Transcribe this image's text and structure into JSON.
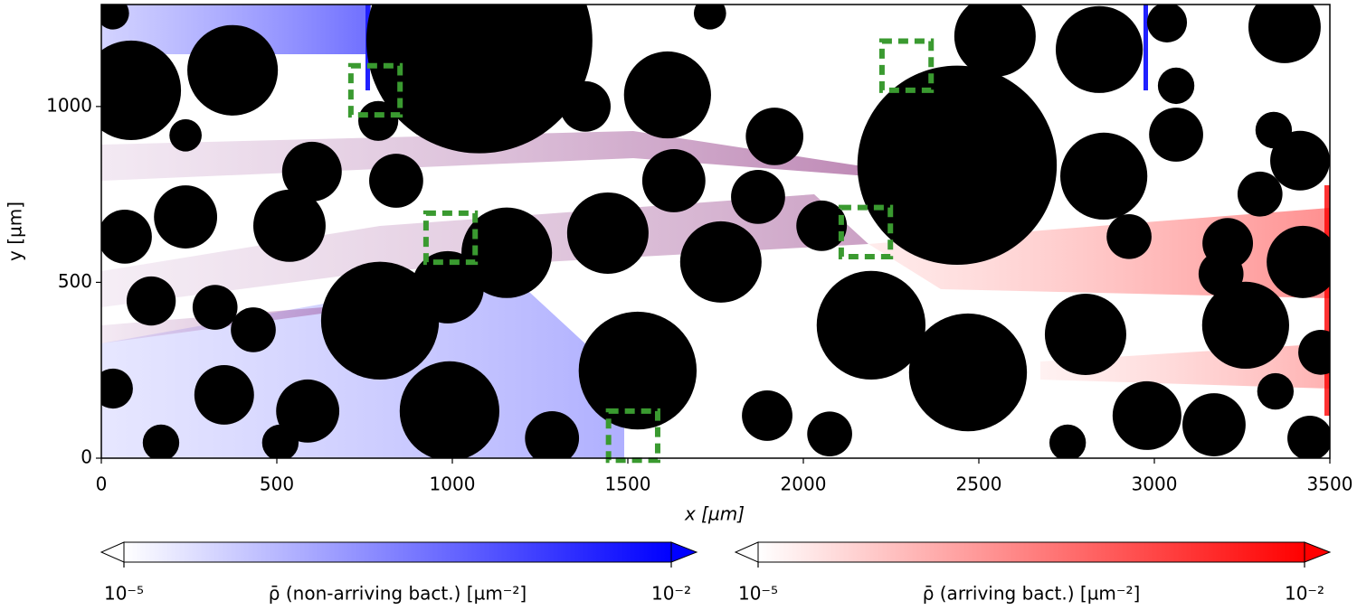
{
  "chart_data": {
    "type": "obstacle-map",
    "xlabel": "x [µm]",
    "ylabel": "y [µm]",
    "xlim": [
      0,
      3500
    ],
    "ylim": [
      0,
      1290
    ],
    "xticks": [
      0,
      500,
      1000,
      1500,
      2000,
      2500,
      3000,
      3500
    ],
    "yticks": [
      0,
      500,
      1000
    ],
    "obstacle_color": "#000000",
    "obstacles": {
      "x": [
        1077,
        2438,
        2469,
        2193,
        1528,
        794,
        1613,
        374,
        85,
        2843,
        2856,
        3260,
        2804,
        1443,
        1155,
        987,
        992,
        3423,
        536,
        600,
        840,
        240,
        67,
        142,
        324,
        433,
        350,
        588,
        1284,
        1631,
        1765,
        1918,
        1871,
        2052,
        1897,
        2075,
        3170,
        3371,
        3415,
        3062,
        2979,
        3443,
        3209,
        3301,
        2928,
        3340,
        3474,
        789,
        240,
        1379,
        33,
        33,
        170,
        2753,
        3036,
        2546,
        1734,
        3062,
        510,
        3345,
        3190
      ],
      "y": [
        1188,
        833,
        244,
        378,
        249,
        391,
        1033,
        1103,
        1046,
        1162,
        802,
        378,
        352,
        640,
        584,
        486,
        134,
        558,
        661,
        815,
        789,
        686,
        630,
        447,
        429,
        365,
        180,
        134,
        57,
        789,
        558,
        915,
        743,
        661,
        121,
        69,
        95,
        1226,
        846,
        920,
        121,
        57,
        611,
        751,
        630,
        933,
        301,
        959,
        918,
        1000,
        1265,
        198,
        44,
        44,
        1239,
        1200,
        1265,
        1059,
        44,
        190,
        524
      ],
      "r": [
        322,
        284,
        168,
        155,
        168,
        168,
        124,
        129,
        142,
        124,
        124,
        124,
        116,
        116,
        129,
        103,
        142,
        103,
        103,
        85,
        77,
        90,
        77,
        70,
        64,
        64,
        85,
        90,
        77,
        90,
        116,
        82,
        77,
        72,
        72,
        64,
        90,
        103,
        85,
        77,
        98,
        64,
        72,
        64,
        64,
        52,
        64,
        57,
        46,
        72,
        46,
        57,
        52,
        52,
        57,
        116,
        46,
        52,
        52,
        52,
        64
      ]
    },
    "highlight_color": "#3a9a30",
    "box_size": 140,
    "highlight_boxes": {
      "x": [
        781,
        2294,
        995,
        2178,
        1515
      ],
      "y": [
        1046,
        1116,
        627,
        643,
        64
      ]
    },
    "colorbars": [
      {
        "label": "ρ̄ (non-arriving bact.) [µm⁻²]",
        "color": "#0000ff",
        "lim": [
          1e-05,
          0.01
        ],
        "log": true,
        "ticks": [
          {
            "value": 1e-05,
            "label": "10⁻⁵"
          },
          {
            "value": 0.01,
            "label": "10⁻²"
          }
        ]
      },
      {
        "label": "ρ̄ (arriving bact.) [µm⁻²]",
        "color": "#ff0000",
        "lim": [
          1e-05,
          0.01
        ],
        "log": true,
        "ticks": [
          {
            "value": 1e-05,
            "label": "10⁻⁵"
          },
          {
            "value": 0.01,
            "label": "10⁻²"
          }
        ]
      }
    ]
  }
}
